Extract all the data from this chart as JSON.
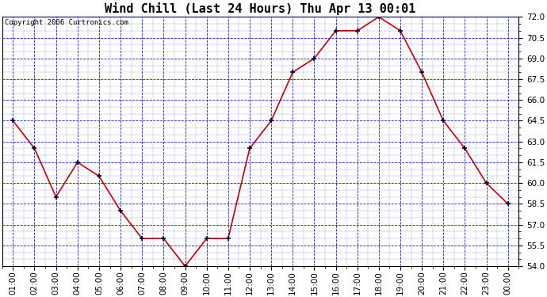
{
  "title": "Wind Chill (Last 24 Hours) Thu Apr 13 00:01",
  "copyright": "Copyright 2006 Curtronics.com",
  "x_labels": [
    "01:00",
    "02:00",
    "03:00",
    "04:00",
    "05:00",
    "06:00",
    "07:00",
    "08:00",
    "09:00",
    "10:00",
    "11:00",
    "12:00",
    "13:00",
    "14:00",
    "15:00",
    "16:00",
    "17:00",
    "18:00",
    "19:00",
    "20:00",
    "21:00",
    "22:00",
    "23:00",
    "00:00"
  ],
  "y_values": [
    64.5,
    62.5,
    59.0,
    61.5,
    60.5,
    58.0,
    56.0,
    56.0,
    54.0,
    56.0,
    56.0,
    62.5,
    64.5,
    68.0,
    69.0,
    71.0,
    71.0,
    72.0,
    71.0,
    68.0,
    64.5,
    62.5,
    60.0,
    58.5
  ],
  "ylim_min": 54.0,
  "ylim_max": 72.0,
  "ytick_step": 1.5,
  "line_color": "#cc0000",
  "marker": "+",
  "marker_color": "#000000",
  "bg_color": "#ffffff",
  "grid_color": "#0000cc",
  "title_fontsize": 11,
  "tick_fontsize": 7.5,
  "copyright_fontsize": 6.5
}
